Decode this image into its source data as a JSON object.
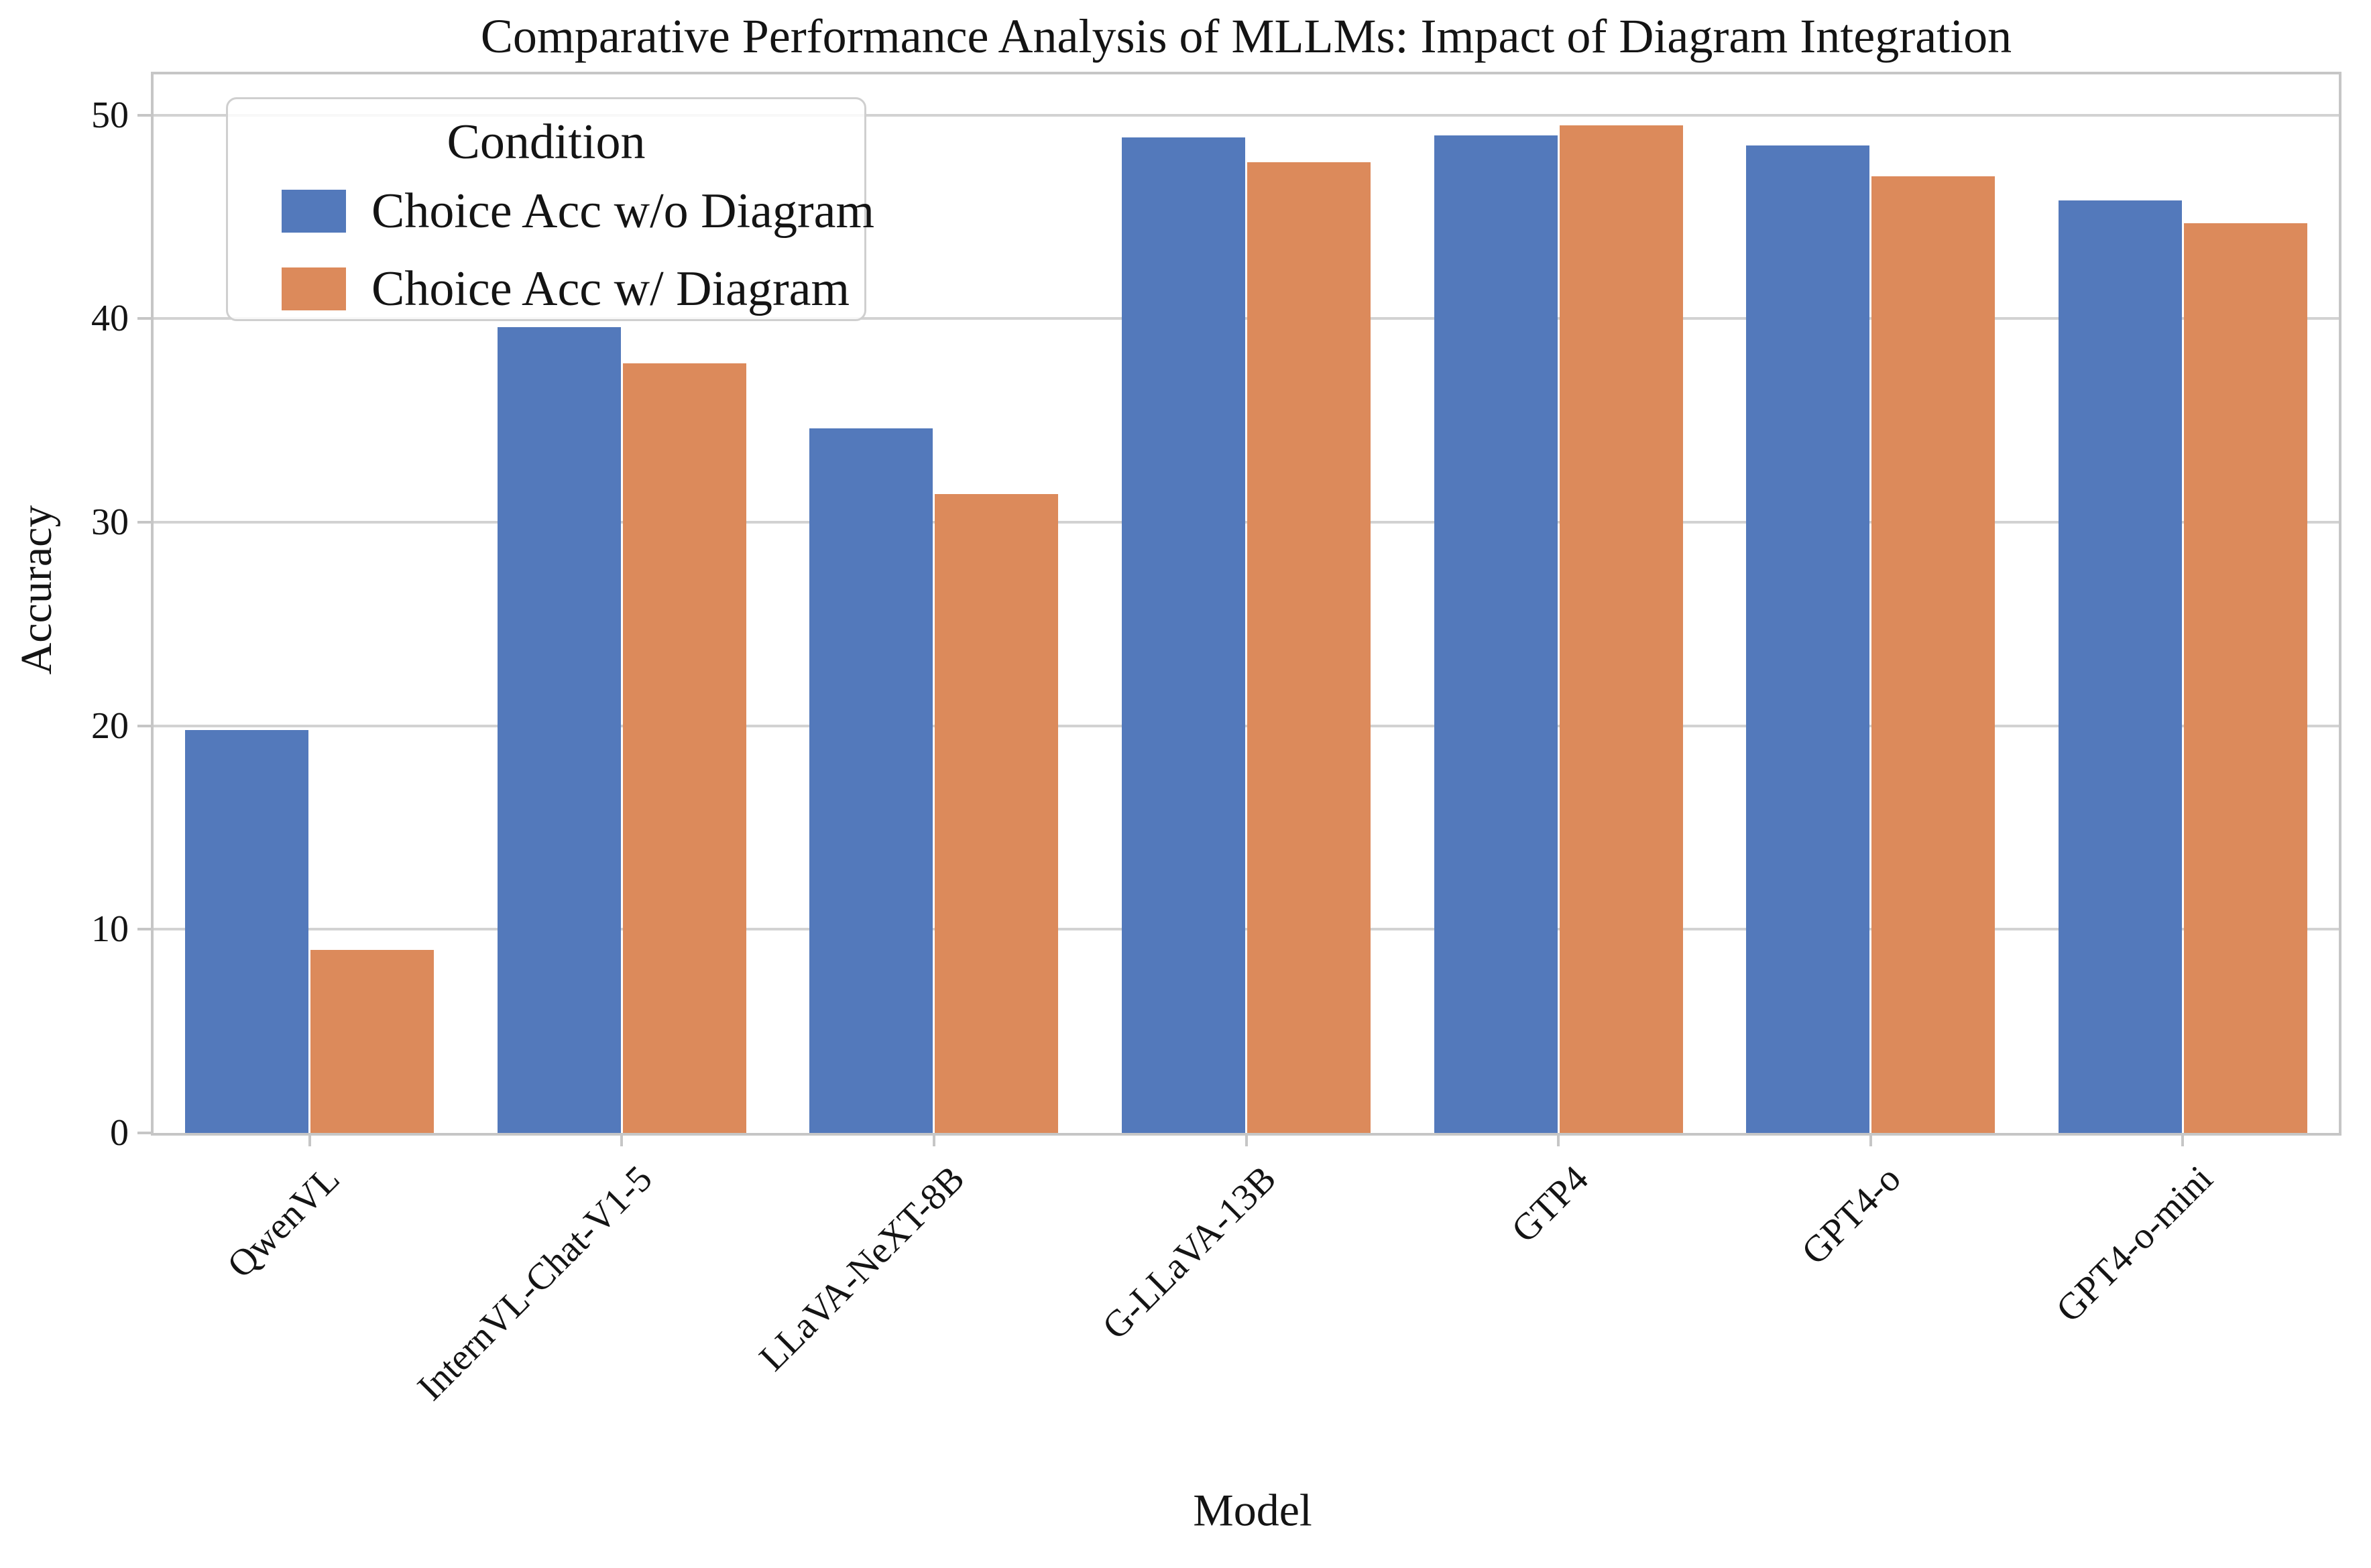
{
  "figure": {
    "title": "Comparative Performance Analysis of MLLMs: Impact of Diagram Integration",
    "xlabel": "Model",
    "ylabel": "Accuracy",
    "legend_title": "Condition"
  },
  "colors": {
    "background": "#ffffff",
    "grid": "#d2d2d2",
    "spine": "#c6c6c6",
    "text": "#141414",
    "series_blue": "#5379BB",
    "series_orange": "#DC8A5B"
  },
  "chart_data": {
    "type": "bar",
    "title": "Comparative Performance Analysis of MLLMs: Impact of Diagram Integration",
    "xlabel": "Model",
    "ylabel": "Accuracy",
    "legend_title": "Condition",
    "legend_position": "upper left",
    "grid": true,
    "categories": [
      "QwenVL",
      "InternVL-Chat-V1-5",
      "LLaVA-NeXT-8B",
      "G-LLaVA-13B",
      "GTP4",
      "GPT4-o",
      "GPT4-o-mini"
    ],
    "series": [
      {
        "name": "Choice Acc w/o Diagram",
        "color": "#5379BB",
        "values": [
          19.8,
          39.6,
          34.6,
          48.9,
          49.0,
          48.5,
          45.8
        ]
      },
      {
        "name": "Choice Acc w/ Diagram",
        "color": "#DC8A5B",
        "values": [
          9.0,
          37.8,
          31.4,
          47.7,
          49.5,
          47.0,
          44.7
        ]
      }
    ],
    "y_ticks": [
      0,
      10,
      20,
      30,
      40,
      50
    ],
    "ylim": [
      0,
      52
    ],
    "x_tick_rotation": 45
  }
}
